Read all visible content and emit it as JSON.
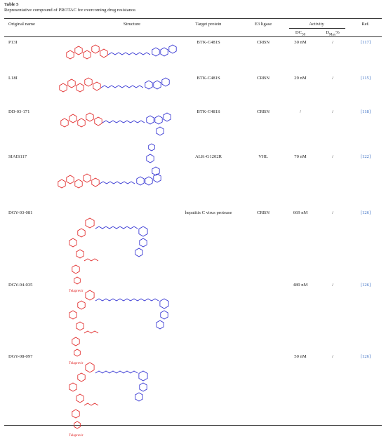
{
  "table": {
    "label": "Table 5",
    "caption": "Representative compound of PROTAC for overcoming drug resistance.",
    "headers": {
      "name": "Original name",
      "structure": "Structure",
      "target": "Target protein",
      "e3": "E3 ligase",
      "activity": "Activity",
      "dc": {
        "text": "DC",
        "sub": "50"
      },
      "dmax": {
        "text": "D",
        "sub": "Max",
        "suffix": "%"
      },
      "ref": "Ref."
    },
    "rows": [
      {
        "name": "P13I",
        "target": "BTK-C481S",
        "e3": "CRBN",
        "dc50": "30 nM",
        "dmax": "/",
        "ref": "[117]"
      },
      {
        "name": "L18I",
        "target": "BTK-C481S",
        "e3": "CRBN",
        "dc50": "29 nM",
        "dmax": "/",
        "ref": "[115]"
      },
      {
        "name": "DD-03-171",
        "target": "BTK-C481S",
        "e3": "CRBN",
        "dc50": "/",
        "dmax": "/",
        "ref": "[118]"
      },
      {
        "name": "SIAIS117",
        "target": "ALK-G1202R",
        "e3": "VHL",
        "dc50": "70 nM",
        "dmax": "/",
        "ref": "[122]"
      },
      {
        "name": "DGY-03-081",
        "target": "hepatitis C virus protease",
        "e3": "CRBN",
        "dc50": "669 nM",
        "dmax": "/",
        "ref": "[126]",
        "structure_label": "Telaprevir"
      },
      {
        "name": "DGY-04-035",
        "dc50": "489 nM",
        "dmax": "/",
        "ref": "[126]",
        "structure_label": "Telaprevir"
      },
      {
        "name": "DGY-08-097",
        "dc50": "50 nM",
        "dmax": "/",
        "ref": "[126]",
        "structure_label": "Telaprevir"
      }
    ]
  }
}
